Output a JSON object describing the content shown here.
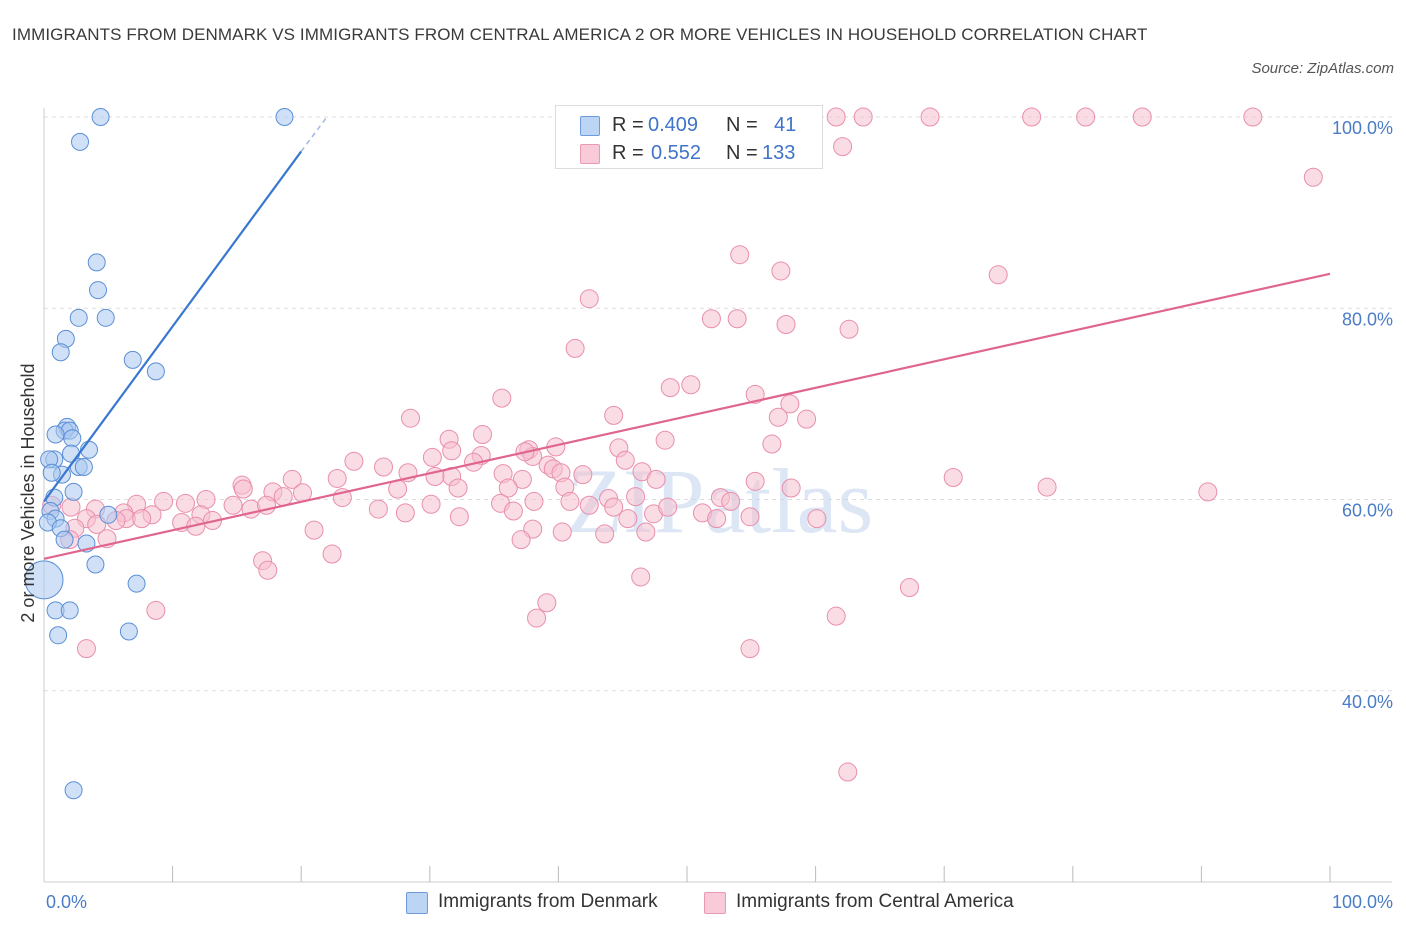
{
  "title": "IMMIGRANTS FROM DENMARK VS IMMIGRANTS FROM CENTRAL AMERICA 2 OR MORE VEHICLES IN HOUSEHOLD CORRELATION CHART",
  "source": "Source: ZipAtlas.com",
  "watermark": "ZIPatlas",
  "legend": {
    "rows": [
      {
        "r_label": "R =",
        "r_value": "0.409",
        "n_label": "N =",
        "n_value": "41"
      },
      {
        "r_label": "R =",
        "r_value": "0.552",
        "n_label": "N =",
        "n_value": "133"
      }
    ]
  },
  "colors": {
    "denmark_fill": "#a9c8f0",
    "denmark_stroke": "#5b8fd6",
    "denmark_line": "#3a78d0",
    "ca_fill": "#f6bfd0",
    "ca_stroke": "#e98fac",
    "ca_line": "#e06690",
    "tick_text": "#4a7cc8",
    "grid": "#dddddd"
  },
  "chart_data": {
    "type": "scatter",
    "title": "IMMIGRANTS FROM DENMARK VS IMMIGRANTS FROM CENTRAL AMERICA 2 OR MORE VEHICLES IN HOUSEHOLD CORRELATION CHART",
    "xlabel": "",
    "ylabel": "2 or more Vehicles in Household",
    "xlim": [
      0,
      100
    ],
    "ylim": [
      20,
      100
    ],
    "x_tick_labels": [
      "0.0%",
      "100.0%"
    ],
    "y_tick_labels": [
      "40.0%",
      "60.0%",
      "80.0%",
      "100.0%"
    ],
    "y_ticks": [
      40,
      60,
      80,
      100
    ],
    "grid": true,
    "legend_position": "bottom",
    "series": [
      {
        "name": "Immigrants from Denmark",
        "R": 0.409,
        "N": 41,
        "trend": {
          "x": [
            0,
            20
          ],
          "y": [
            59.8,
            96.4
          ],
          "dash_to": [
            22,
            100
          ]
        },
        "points": [
          [
            4.4,
            100
          ],
          [
            18.7,
            100
          ],
          [
            2.8,
            97.4
          ],
          [
            4.1,
            84.8
          ],
          [
            4.2,
            81.9
          ],
          [
            2.7,
            79.0
          ],
          [
            4.8,
            79.0
          ],
          [
            1.7,
            76.8
          ],
          [
            1.3,
            75.4
          ],
          [
            6.9,
            74.6
          ],
          [
            8.7,
            73.4
          ],
          [
            1.8,
            67.6
          ],
          [
            1.6,
            67.2
          ],
          [
            2.0,
            67.2
          ],
          [
            0.9,
            66.8
          ],
          [
            2.2,
            66.4
          ],
          [
            3.5,
            65.2
          ],
          [
            2.1,
            64.8
          ],
          [
            0.8,
            64.2
          ],
          [
            0.4,
            64.2
          ],
          [
            2.7,
            63.4
          ],
          [
            3.1,
            63.4
          ],
          [
            1.4,
            62.6
          ],
          [
            0.6,
            62.8
          ],
          [
            2.3,
            60.8
          ],
          [
            0.8,
            60.2
          ],
          [
            0.5,
            58.8
          ],
          [
            0.9,
            58.0
          ],
          [
            5.0,
            58.4
          ],
          [
            0.3,
            57.6
          ],
          [
            1.3,
            57.0
          ],
          [
            1.6,
            55.8
          ],
          [
            3.3,
            55.4
          ],
          [
            4.0,
            53.2
          ],
          [
            0.0,
            51.6
          ],
          [
            7.2,
            51.2
          ],
          [
            0.9,
            48.4
          ],
          [
            2.0,
            48.4
          ],
          [
            6.6,
            46.2
          ],
          [
            1.1,
            45.8
          ],
          [
            2.3,
            29.6
          ]
        ]
      },
      {
        "name": "Immigrants from Central America",
        "R": 0.552,
        "N": 133,
        "trend": {
          "x": [
            0,
            100
          ],
          "y": [
            53.8,
            83.6
          ]
        },
        "points": [
          [
            55.3,
            100
          ],
          [
            61.6,
            100
          ],
          [
            63.7,
            100
          ],
          [
            68.9,
            100
          ],
          [
            76.8,
            100
          ],
          [
            81.0,
            100
          ],
          [
            85.4,
            100
          ],
          [
            94.0,
            100
          ],
          [
            62.1,
            96.9
          ],
          [
            98.7,
            93.7
          ],
          [
            54.1,
            85.6
          ],
          [
            57.3,
            83.9
          ],
          [
            74.2,
            83.5
          ],
          [
            42.4,
            81.0
          ],
          [
            51.9,
            78.9
          ],
          [
            53.9,
            78.9
          ],
          [
            62.6,
            77.8
          ],
          [
            57.7,
            78.3
          ],
          [
            41.3,
            75.8
          ],
          [
            50.3,
            72.0
          ],
          [
            48.7,
            71.7
          ],
          [
            55.3,
            71.0
          ],
          [
            35.6,
            70.6
          ],
          [
            58.0,
            70.0
          ],
          [
            57.1,
            68.6
          ],
          [
            59.3,
            68.4
          ],
          [
            44.3,
            68.8
          ],
          [
            28.5,
            68.5
          ],
          [
            34.1,
            66.8
          ],
          [
            31.5,
            66.3
          ],
          [
            34.0,
            64.6
          ],
          [
            48.3,
            66.2
          ],
          [
            44.7,
            65.4
          ],
          [
            56.6,
            65.8
          ],
          [
            31.7,
            65.1
          ],
          [
            37.7,
            65.2
          ],
          [
            39.8,
            65.5
          ],
          [
            30.2,
            64.4
          ],
          [
            24.1,
            64.0
          ],
          [
            33.4,
            63.9
          ],
          [
            38.0,
            64.5
          ],
          [
            37.4,
            65.0
          ],
          [
            45.2,
            64.1
          ],
          [
            39.2,
            63.6
          ],
          [
            39.6,
            63.2
          ],
          [
            41.9,
            62.6
          ],
          [
            46.5,
            62.9
          ],
          [
            35.7,
            62.7
          ],
          [
            40.2,
            62.8
          ],
          [
            37.2,
            62.1
          ],
          [
            31.7,
            62.4
          ],
          [
            26.4,
            63.4
          ],
          [
            28.3,
            62.8
          ],
          [
            30.4,
            62.4
          ],
          [
            22.8,
            62.2
          ],
          [
            15.4,
            61.5
          ],
          [
            19.3,
            62.1
          ],
          [
            47.6,
            62.1
          ],
          [
            70.7,
            62.3
          ],
          [
            55.3,
            61.9
          ],
          [
            58.1,
            61.2
          ],
          [
            78.0,
            61.3
          ],
          [
            90.5,
            60.8
          ],
          [
            15.5,
            61.1
          ],
          [
            27.5,
            61.1
          ],
          [
            32.2,
            61.2
          ],
          [
            36.1,
            61.2
          ],
          [
            40.5,
            61.3
          ],
          [
            17.8,
            60.8
          ],
          [
            20.1,
            60.7
          ],
          [
            18.6,
            60.3
          ],
          [
            23.2,
            60.2
          ],
          [
            12.6,
            60.0
          ],
          [
            9.3,
            59.8
          ],
          [
            7.2,
            59.5
          ],
          [
            11.0,
            59.6
          ],
          [
            14.7,
            59.4
          ],
          [
            43.9,
            60.1
          ],
          [
            46.0,
            60.3
          ],
          [
            52.6,
            60.2
          ],
          [
            53.4,
            59.8
          ],
          [
            30.1,
            59.5
          ],
          [
            38.1,
            59.8
          ],
          [
            40.9,
            59.8
          ],
          [
            35.5,
            59.6
          ],
          [
            42.4,
            59.4
          ],
          [
            44.3,
            59.2
          ],
          [
            47.4,
            58.5
          ],
          [
            48.5,
            59.2
          ],
          [
            2.1,
            59.2
          ],
          [
            0.6,
            59.4
          ],
          [
            4.0,
            59.0
          ],
          [
            6.2,
            58.6
          ],
          [
            8.4,
            58.4
          ],
          [
            12.2,
            58.4
          ],
          [
            16.1,
            59.0
          ],
          [
            17.3,
            59.4
          ],
          [
            26.0,
            59.0
          ],
          [
            28.1,
            58.6
          ],
          [
            32.3,
            58.2
          ],
          [
            36.5,
            58.8
          ],
          [
            45.4,
            58.0
          ],
          [
            51.2,
            58.6
          ],
          [
            52.3,
            58.0
          ],
          [
            54.9,
            58.2
          ],
          [
            60.1,
            58.0
          ],
          [
            3.3,
            58.0
          ],
          [
            6.4,
            58.0
          ],
          [
            7.6,
            58.0
          ],
          [
            10.7,
            57.6
          ],
          [
            13.1,
            57.8
          ],
          [
            4.1,
            57.4
          ],
          [
            2.4,
            57.0
          ],
          [
            5.6,
            57.8
          ],
          [
            11.8,
            57.2
          ],
          [
            21.0,
            56.8
          ],
          [
            38.0,
            56.9
          ],
          [
            40.3,
            56.6
          ],
          [
            43.6,
            56.4
          ],
          [
            2.0,
            55.8
          ],
          [
            4.9,
            55.9
          ],
          [
            37.1,
            55.8
          ],
          [
            46.8,
            56.6
          ],
          [
            22.4,
            54.3
          ],
          [
            17.0,
            53.6
          ],
          [
            17.4,
            52.6
          ],
          [
            46.4,
            51.9
          ],
          [
            67.3,
            50.8
          ],
          [
            39.1,
            49.2
          ],
          [
            38.3,
            47.6
          ],
          [
            8.7,
            48.4
          ],
          [
            61.6,
            47.8
          ],
          [
            54.9,
            44.4
          ],
          [
            3.3,
            44.4
          ],
          [
            62.5,
            31.5
          ]
        ]
      }
    ]
  },
  "bottom_legend": [
    "Immigrants from Denmark",
    "Immigrants from Central America"
  ]
}
